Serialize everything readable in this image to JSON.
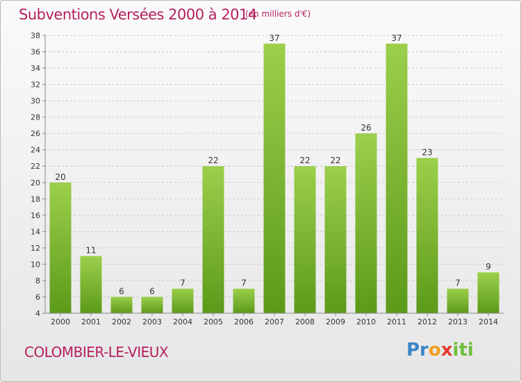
{
  "title": "Subventions Versées 2000 à 2014",
  "subtitle": "(en milliers d'€)",
  "commune": "COLOMBIER-LE-VIEUX",
  "logo_text": "Proxiti",
  "colors": {
    "title": "#b51f5e",
    "bar_top": "#9ccf4b",
    "bar_bottom": "#5c9a1a",
    "grid": "#c8c8c8"
  },
  "chart_data": {
    "type": "bar",
    "categories": [
      "2000",
      "2001",
      "2002",
      "2003",
      "2004",
      "2005",
      "2006",
      "2007",
      "2008",
      "2009",
      "2010",
      "2011",
      "2012",
      "2013",
      "2014"
    ],
    "values": [
      20,
      11,
      6,
      6,
      7,
      22,
      7,
      37,
      22,
      22,
      26,
      37,
      23,
      7,
      9
    ],
    "title": "Subventions Versées 2000 à 2014",
    "xlabel": "",
    "ylabel": "",
    "ylim": [
      4,
      38
    ],
    "ytick_step": 2,
    "grid": true,
    "legend": "none"
  }
}
